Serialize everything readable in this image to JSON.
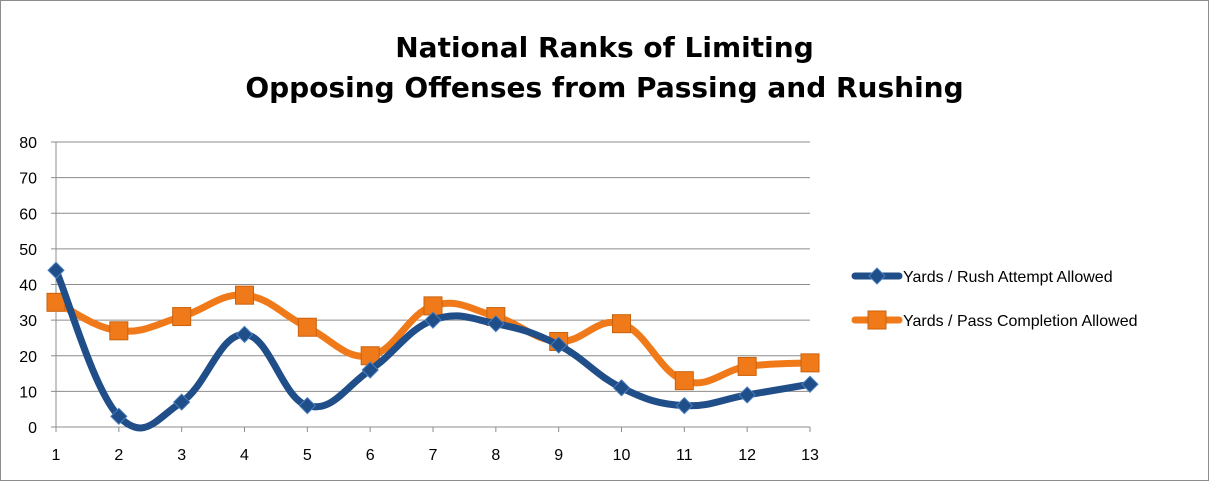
{
  "chart_data": {
    "type": "line",
    "title_lines": [
      "National Ranks of Limiting",
      "Opposing Offenses from Passing and Rushing"
    ],
    "xlabel": "",
    "ylabel": "",
    "categories": [
      "1",
      "2",
      "3",
      "4",
      "5",
      "6",
      "7",
      "8",
      "9",
      "10",
      "11",
      "12",
      "13"
    ],
    "ylim": [
      0,
      80
    ],
    "yticks": [
      "0",
      "10",
      "20",
      "30",
      "40",
      "50",
      "60",
      "70",
      "80"
    ],
    "grid": true,
    "legend_position": "right",
    "smooth": true,
    "series": [
      {
        "name": "Yards / Rush Attempt Allowed",
        "color": "#1f4e89",
        "marker": "diamond",
        "values": [
          44,
          3,
          7,
          26,
          6,
          16,
          30,
          29,
          23,
          11,
          6,
          9,
          12
        ]
      },
      {
        "name": "Yards / Pass Completion Allowed",
        "color": "#f07a1a",
        "marker": "square",
        "values": [
          35,
          27,
          31,
          37,
          28,
          20,
          34,
          31,
          24,
          29,
          13,
          17,
          18
        ]
      }
    ]
  }
}
